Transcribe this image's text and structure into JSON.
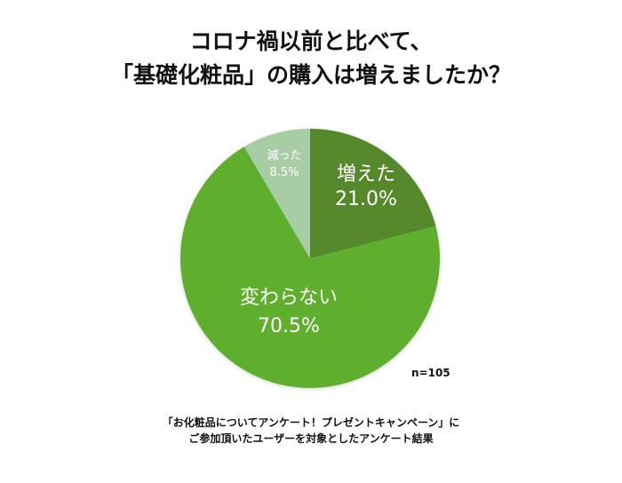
{
  "title": {
    "line1": "コロナ禍以前と比べて、",
    "line2": "「基礎化粧品」の購入は増えましたか？"
  },
  "chart_data": {
    "type": "pie",
    "title": "コロナ禍以前と比べて、「基礎化粧品」の購入は増えましたか？",
    "categories": [
      "増えた",
      "変わらない",
      "減った"
    ],
    "values": [
      21.0,
      70.5,
      8.5
    ],
    "unit": "%",
    "colors": [
      "#548829",
      "#5fae2e",
      "#a8cda5"
    ],
    "sample_size": "n=105",
    "start_angle_deg": 0,
    "direction": "clockwise"
  },
  "labels": {
    "increased": {
      "name": "増えた",
      "value": "21.0%"
    },
    "unchanged": {
      "name": "変わらない",
      "value": "70.5%"
    },
    "decreased": {
      "name": "減った",
      "value": "8.5%"
    }
  },
  "sample_size": "n=105",
  "footnote": {
    "line1": "「お化粧品についてアンケート！プレゼントキャンペーン」に",
    "line2": "ご参加頂いたユーザーを対象としたアンケート結果"
  }
}
